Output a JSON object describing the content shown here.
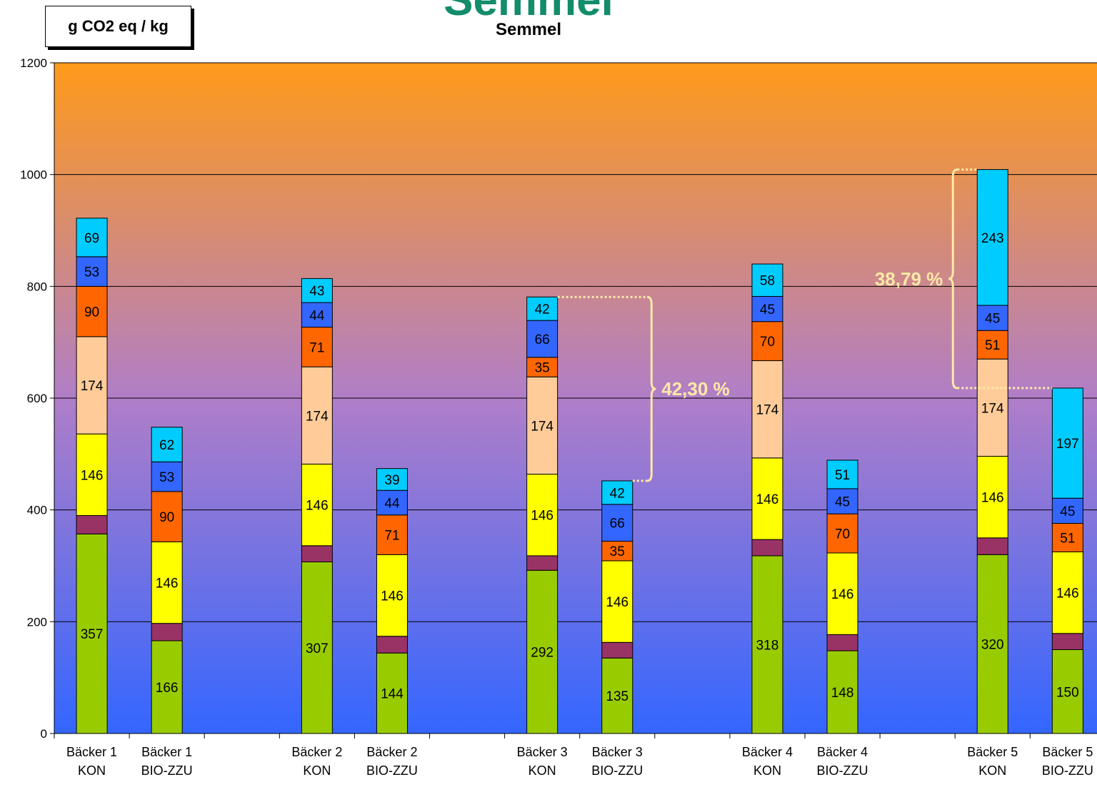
{
  "chart_data": {
    "type": "bar",
    "stacked": true,
    "title": "Semmel",
    "title_partial": "Semmel",
    "ylabel": "g CO2 eq / kg",
    "ylim": [
      0,
      1200
    ],
    "yticks": [
      0,
      200,
      400,
      600,
      800,
      1000,
      1200
    ],
    "grid": true,
    "categories": [
      [
        "Bäcker 1",
        "KON"
      ],
      [
        "Bäcker 1",
        "BIO-ZZU"
      ],
      [
        "Bäcker 2",
        "KON"
      ],
      [
        "Bäcker 2",
        "BIO-ZZU"
      ],
      [
        "Bäcker 3",
        "KON"
      ],
      [
        "Bäcker 3",
        "BIO-ZZU"
      ],
      [
        "Bäcker 4",
        "KON"
      ],
      [
        "Bäcker 4",
        "BIO-ZZU"
      ],
      [
        "Bäcker 5",
        "KON"
      ],
      [
        "Bäcker 5",
        "BIO-ZZU"
      ]
    ],
    "series": [
      {
        "color": "#99cc00",
        "labeled": true,
        "values": [
          357,
          166,
          307,
          144,
          292,
          135,
          318,
          148,
          320,
          150
        ]
      },
      {
        "color": "#993366",
        "labeled": false,
        "values": [
          33,
          31,
          29,
          30,
          26,
          28,
          29,
          29,
          30,
          29
        ]
      },
      {
        "color": "#ffff00",
        "labeled": true,
        "values": [
          146,
          146,
          146,
          146,
          146,
          146,
          146,
          146,
          146,
          146
        ]
      },
      {
        "color": "#ffcc99",
        "labeled": true,
        "values": [
          174,
          0,
          174,
          0,
          174,
          0,
          174,
          0,
          174,
          0
        ]
      },
      {
        "color": "#ff6600",
        "labeled": true,
        "values": [
          90,
          90,
          71,
          71,
          35,
          35,
          70,
          70,
          51,
          51
        ]
      },
      {
        "color": "#3366ff",
        "labeled": true,
        "values": [
          53,
          53,
          44,
          44,
          66,
          66,
          45,
          45,
          45,
          45
        ]
      },
      {
        "color": "#00ccff",
        "labeled": true,
        "values": [
          69,
          62,
          43,
          39,
          42,
          42,
          58,
          51,
          243,
          197
        ]
      }
    ],
    "annotations": [
      {
        "text": "42,30 %",
        "from_bar": 4,
        "to_bar": 5
      },
      {
        "text": "38,79 %",
        "from_bar": 8,
        "to_bar": 9
      }
    ],
    "background_gradient": [
      "#ff9a1a",
      "#b07ec8",
      "#3366ff"
    ]
  }
}
